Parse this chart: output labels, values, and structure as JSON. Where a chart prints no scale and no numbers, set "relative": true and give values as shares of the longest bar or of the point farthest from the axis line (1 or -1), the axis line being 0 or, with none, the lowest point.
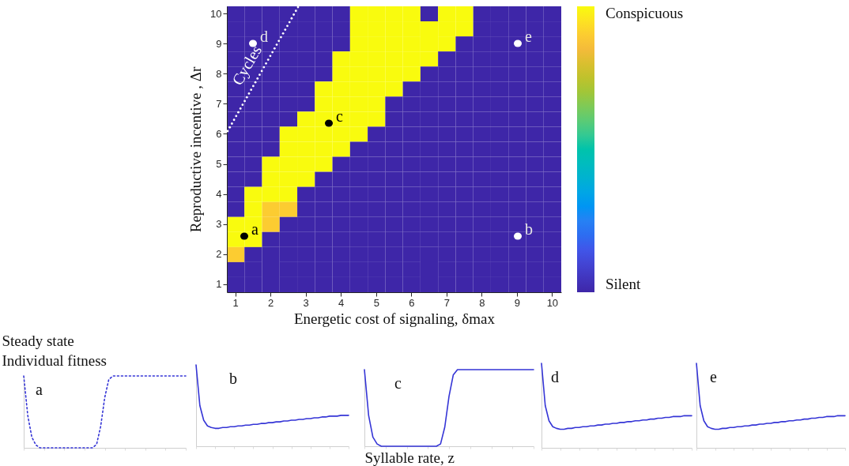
{
  "chart_data": [
    {
      "type": "heatmap",
      "xlabel": "Energetic cost of signaling, δmax",
      "ylabel": "Reproductive incentive , Δr",
      "categories": [
        "1",
        null,
        "2",
        null,
        "3",
        null,
        "4",
        null,
        "5",
        null,
        "6",
        null,
        "7",
        null,
        "8",
        null,
        "9",
        null,
        "10"
      ],
      "y_categories": [
        "10",
        null,
        "9",
        null,
        "8",
        null,
        "7",
        null,
        "6",
        null,
        "5",
        null,
        "4",
        null,
        "3",
        null,
        "2",
        null,
        "1"
      ],
      "clim": [
        0,
        1
      ],
      "cticks": [
        {
          "value": 0,
          "label": "Silent"
        },
        {
          "value": 1,
          "label": "Conspicuous"
        }
      ],
      "cells": [
        [
          0,
          0,
          0,
          0,
          0,
          0,
          0,
          1,
          1,
          1,
          1,
          0,
          1,
          1,
          0,
          0,
          0,
          0,
          0
        ],
        [
          0,
          0,
          0,
          0,
          0,
          0,
          0,
          1,
          1,
          1,
          1,
          1,
          1,
          1,
          0,
          0,
          0,
          0,
          0
        ],
        [
          0,
          0,
          0,
          0,
          0,
          0,
          0,
          1,
          1,
          1,
          1,
          1,
          1,
          0,
          0,
          0,
          0,
          0,
          0
        ],
        [
          0,
          0,
          0,
          0,
          0,
          0,
          1,
          1,
          1,
          1,
          1,
          1,
          0,
          0,
          0,
          0,
          0,
          0,
          0
        ],
        [
          0,
          0,
          0,
          0,
          0,
          0,
          1,
          1,
          1,
          1,
          1,
          0,
          0,
          0,
          0,
          0,
          0,
          0,
          0
        ],
        [
          0,
          0,
          0,
          0,
          0,
          1,
          1,
          1,
          1,
          1,
          0,
          0,
          0,
          0,
          0,
          0,
          0,
          0,
          0
        ],
        [
          0,
          0,
          0,
          0,
          0,
          1,
          1,
          1,
          1,
          0,
          0,
          0,
          0,
          0,
          0,
          0,
          0,
          0,
          0
        ],
        [
          0,
          0,
          0,
          0,
          1,
          1,
          1,
          1,
          1,
          0,
          0,
          0,
          0,
          0,
          0,
          0,
          0,
          0,
          0
        ],
        [
          0,
          0,
          0,
          1,
          1,
          1,
          1,
          1,
          0,
          0,
          0,
          0,
          0,
          0,
          0,
          0,
          0,
          0,
          0
        ],
        [
          0,
          0,
          0,
          1,
          1,
          1,
          1,
          0,
          0,
          0,
          0,
          0,
          0,
          0,
          0,
          0,
          0,
          0,
          0
        ],
        [
          0,
          0,
          1,
          1,
          1,
          1,
          0,
          0,
          0,
          0,
          0,
          0,
          0,
          0,
          0,
          0,
          0,
          0,
          0
        ],
        [
          0,
          0,
          1,
          1,
          1,
          0,
          0,
          0,
          0,
          0,
          0,
          0,
          0,
          0,
          0,
          0,
          0,
          0,
          0
        ],
        [
          0,
          1,
          1,
          1,
          0,
          0,
          0,
          0,
          0,
          0,
          0,
          0,
          0,
          0,
          0,
          0,
          0,
          0,
          0
        ],
        [
          0,
          1,
          0.9,
          0.9,
          0,
          0,
          0,
          0,
          0,
          0,
          0,
          0,
          0,
          0,
          0,
          0,
          0,
          0,
          0
        ],
        [
          1,
          1,
          0.9,
          0,
          0,
          0,
          0,
          0,
          0,
          0,
          0,
          0,
          0,
          0,
          0,
          0,
          0,
          0,
          0
        ],
        [
          1,
          1,
          0,
          0,
          0,
          0,
          0,
          0,
          0,
          0,
          0,
          0,
          0,
          0,
          0,
          0,
          0,
          0,
          0
        ],
        [
          0.9,
          0,
          0,
          0,
          0,
          0,
          0,
          0,
          0,
          0,
          0,
          0,
          0,
          0,
          0,
          0,
          0,
          0,
          0
        ],
        [
          0,
          0,
          0,
          0,
          0,
          0,
          0,
          0,
          0,
          0,
          0,
          0,
          0,
          0,
          0,
          0,
          0,
          0,
          0
        ],
        [
          0,
          0,
          0,
          0,
          0,
          0,
          0,
          0,
          0,
          0,
          0,
          0,
          0,
          0,
          0,
          0,
          0,
          0,
          0
        ]
      ],
      "annotations": [
        "Cycles",
        "a",
        "b",
        "c",
        "d",
        "e"
      ]
    },
    {
      "type": "line",
      "relative": true,
      "tick_labels": false,
      "ylabel": "Steady state\nIndividual fitness",
      "color": "#3535d6",
      "line_style": "dotted",
      "annotations": [
        "a"
      ],
      "categories": [
        null,
        null,
        null,
        null,
        null,
        null,
        null,
        null,
        null,
        null,
        null,
        null,
        null,
        null,
        null,
        null,
        null,
        null,
        null,
        null,
        null,
        null,
        null,
        null,
        null,
        null,
        null,
        null,
        null,
        null,
        null,
        null,
        null,
        null,
        null,
        null,
        null,
        null,
        null,
        null,
        null
      ],
      "values": [
        1,
        0.45,
        0.15,
        0.04,
        0,
        0,
        0,
        0,
        0,
        0,
        0,
        0,
        0,
        0,
        0,
        0,
        0,
        0,
        0.05,
        0.3,
        0.7,
        0.95,
        1,
        1,
        1,
        1,
        1,
        1,
        1,
        1,
        1,
        1,
        1,
        1,
        1,
        1,
        1,
        1,
        1,
        1,
        1
      ]
    },
    {
      "type": "line",
      "relative": true,
      "tick_labels": false,
      "color": "#3535d6",
      "annotations": [
        "b"
      ],
      "categories": [
        null,
        null,
        null,
        null,
        null,
        null,
        null,
        null,
        null,
        null,
        null,
        null,
        null,
        null,
        null,
        null,
        null,
        null,
        null,
        null,
        null,
        null,
        null,
        null,
        null,
        null,
        null,
        null,
        null,
        null,
        null,
        null,
        null,
        null,
        null,
        null,
        null,
        null,
        null,
        null,
        null
      ],
      "values": [
        1,
        0.5,
        0.32,
        0.25,
        0.23,
        0.22,
        0.22,
        0.23,
        0.23,
        0.24,
        0.24,
        0.25,
        0.25,
        0.26,
        0.26,
        0.27,
        0.27,
        0.28,
        0.28,
        0.29,
        0.29,
        0.3,
        0.3,
        0.31,
        0.31,
        0.32,
        0.32,
        0.33,
        0.33,
        0.34,
        0.34,
        0.35,
        0.35,
        0.36,
        0.36,
        0.37,
        0.37,
        0.37,
        0.38,
        0.38,
        0.38
      ]
    },
    {
      "type": "line",
      "relative": true,
      "tick_labels": false,
      "xlabel": "Syllable rate, z",
      "color": "#3535d6",
      "annotations": [
        "c"
      ],
      "categories": [
        null,
        null,
        null,
        null,
        null,
        null,
        null,
        null,
        null,
        null,
        null,
        null,
        null,
        null,
        null,
        null,
        null,
        null,
        null,
        null,
        null,
        null,
        null,
        null,
        null,
        null,
        null,
        null,
        null,
        null,
        null,
        null,
        null,
        null,
        null,
        null,
        null,
        null,
        null,
        null,
        null
      ],
      "values": [
        1,
        0.4,
        0.12,
        0.03,
        0,
        0,
        0,
        0,
        0,
        0,
        0,
        0,
        0,
        0,
        0,
        0,
        0,
        0,
        0.03,
        0.25,
        0.65,
        0.93,
        1,
        1,
        1,
        1,
        1,
        1,
        1,
        1,
        1,
        1,
        1,
        1,
        1,
        1,
        1,
        1,
        1,
        1,
        1
      ]
    },
    {
      "type": "line",
      "relative": true,
      "tick_labels": false,
      "color": "#3535d6",
      "annotations": [
        "d"
      ],
      "categories": [
        null,
        null,
        null,
        null,
        null,
        null,
        null,
        null,
        null,
        null,
        null,
        null,
        null,
        null,
        null,
        null,
        null,
        null,
        null,
        null,
        null,
        null,
        null,
        null,
        null,
        null,
        null,
        null,
        null,
        null,
        null,
        null,
        null,
        null,
        null,
        null,
        null,
        null,
        null,
        null,
        null
      ],
      "values": [
        1,
        0.5,
        0.32,
        0.25,
        0.23,
        0.22,
        0.22,
        0.23,
        0.23,
        0.24,
        0.24,
        0.25,
        0.25,
        0.26,
        0.26,
        0.27,
        0.27,
        0.28,
        0.28,
        0.29,
        0.29,
        0.3,
        0.3,
        0.31,
        0.31,
        0.32,
        0.32,
        0.33,
        0.33,
        0.34,
        0.34,
        0.35,
        0.35,
        0.36,
        0.36,
        0.37,
        0.37,
        0.37,
        0.38,
        0.38,
        0.38
      ]
    },
    {
      "type": "line",
      "relative": true,
      "tick_labels": false,
      "color": "#3535d6",
      "annotations": [
        "e"
      ],
      "categories": [
        null,
        null,
        null,
        null,
        null,
        null,
        null,
        null,
        null,
        null,
        null,
        null,
        null,
        null,
        null,
        null,
        null,
        null,
        null,
        null,
        null,
        null,
        null,
        null,
        null,
        null,
        null,
        null,
        null,
        null,
        null,
        null,
        null,
        null,
        null,
        null,
        null,
        null,
        null,
        null,
        null
      ],
      "values": [
        1,
        0.5,
        0.32,
        0.25,
        0.23,
        0.22,
        0.22,
        0.23,
        0.23,
        0.24,
        0.24,
        0.25,
        0.25,
        0.26,
        0.26,
        0.27,
        0.27,
        0.28,
        0.28,
        0.29,
        0.29,
        0.3,
        0.3,
        0.31,
        0.31,
        0.32,
        0.32,
        0.33,
        0.33,
        0.34,
        0.34,
        0.35,
        0.35,
        0.36,
        0.36,
        0.37,
        0.37,
        0.37,
        0.38,
        0.38,
        0.38
      ]
    }
  ]
}
